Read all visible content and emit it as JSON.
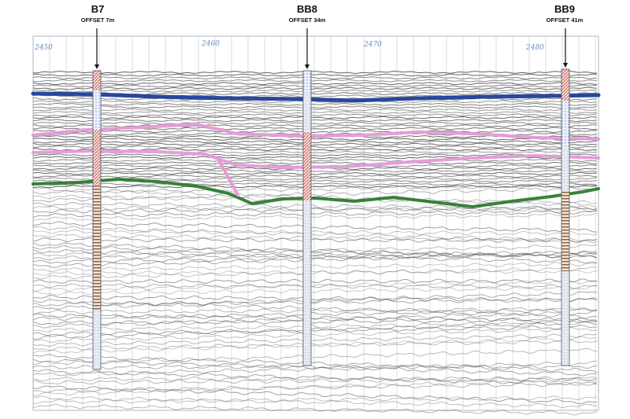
{
  "boreholes": [
    {
      "id": "B7",
      "offset_label": "OFFSET 7m"
    },
    {
      "id": "BB8",
      "offset_label": "OFFSET 34m"
    },
    {
      "id": "BB9",
      "offset_label": "OFFSET 41m"
    }
  ],
  "chainage_labels": [
    "2450",
    "2460",
    "2470",
    "2480"
  ],
  "colors": {
    "horizon_blue": "#1f3f9a",
    "horizon_pink": "#e69ad8",
    "horizon_green": "#2f7a2f",
    "grid": "#c9cfe0",
    "seismic_trace": "#5a5a5a",
    "borehole_fill": "#e8eef7",
    "borehole_hatch_red": "#c0504d",
    "borehole_hatch_brown": "#8a5a3c",
    "borehole_dotted": "#6f8fc8"
  },
  "horizons": [
    {
      "name": "blue",
      "color_key": "horizon_blue"
    },
    {
      "name": "pink-upper",
      "color_key": "horizon_pink"
    },
    {
      "name": "pink-lower",
      "color_key": "horizon_pink"
    },
    {
      "name": "green",
      "color_key": "horizon_green"
    }
  ]
}
